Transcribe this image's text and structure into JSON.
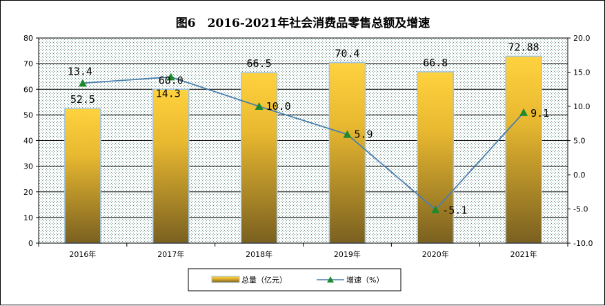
{
  "chart_data": {
    "type": "bar",
    "title": "图6　2016-2021年社会消费品零售总额及增速",
    "categories": [
      "2016年",
      "2017年",
      "2018年",
      "2019年",
      "2020年",
      "2021年"
    ],
    "series": [
      {
        "name": "总量（亿元）",
        "type": "bar",
        "axis": "left",
        "values": [
          52.5,
          60.0,
          66.5,
          70.4,
          66.8,
          72.88
        ],
        "labels": [
          "52.5",
          "60.0",
          "66.5",
          "70.4",
          "66.8",
          "72.88"
        ]
      },
      {
        "name": "增速（%）",
        "type": "line",
        "axis": "right",
        "values": [
          13.4,
          14.3,
          10.0,
          5.9,
          -5.1,
          9.1
        ],
        "labels": [
          "13.4",
          "14.3",
          "10.0",
          "5.9",
          "-5.1",
          "9.1"
        ]
      }
    ],
    "y_left": {
      "lim": [
        0,
        80
      ],
      "ticks": [
        "0",
        "10",
        "20",
        "30",
        "40",
        "50",
        "60",
        "70",
        "80"
      ]
    },
    "y_right": {
      "lim": [
        -10,
        20
      ],
      "ticks": [
        "-10.0",
        "-5.0",
        "0.0",
        "5.0",
        "10.0",
        "15.0",
        "20.0"
      ]
    },
    "grid": true,
    "legend_position": "bottom",
    "colors": {
      "bar_top": "#ffd23f",
      "bar_bottom": "#7a6020",
      "bar_border": "#9ec3de",
      "line": "#4a7fae",
      "marker": "#1e8a2e",
      "grid": "#000000"
    }
  }
}
